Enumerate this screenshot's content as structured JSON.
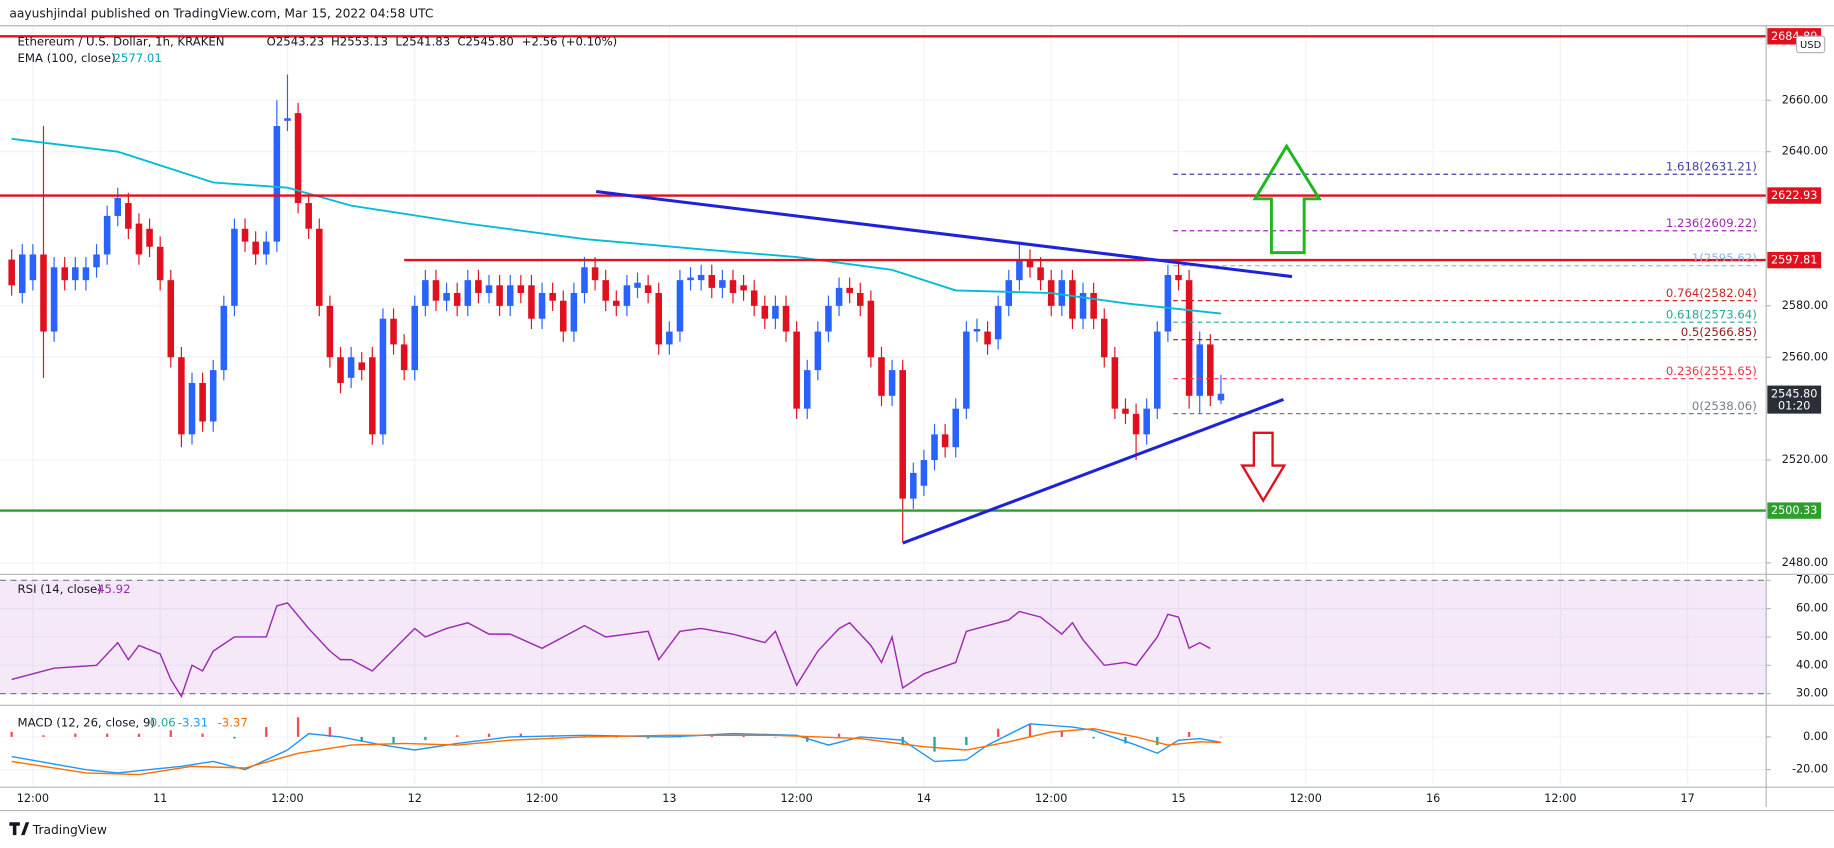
{
  "header": {
    "published": "aayushjindal published on TradingView.com, Mar 15, 2022 04:58 UTC",
    "currency": "USD"
  },
  "footer": {
    "brand": "TradingView"
  },
  "chart_data": [
    {
      "type": "candlestick",
      "legend": {
        "symbol": "Ethereum / U.S. Dollar, 1h, KRAKEN",
        "open": "O2543.23",
        "high": "H2553.13",
        "low": "L2541.83",
        "close": "C2545.80",
        "change": "+2.56 (+0.10%)"
      },
      "up_color": "#2962ff",
      "down_color": "#e0101e",
      "x": [
        -2,
        -1,
        0,
        1,
        2,
        3,
        4,
        5,
        6,
        7,
        8,
        9,
        10,
        11,
        12,
        13,
        14,
        15,
        16,
        17,
        18,
        19,
        20,
        21,
        22,
        23,
        24,
        25,
        26,
        27,
        28,
        29,
        30,
        31,
        32,
        33,
        34,
        35,
        36,
        37,
        38,
        39,
        40,
        41,
        42,
        43,
        44,
        45,
        46,
        47,
        48,
        49,
        50,
        51,
        52,
        53,
        54,
        55,
        56,
        57,
        58,
        59,
        60,
        61,
        62,
        63,
        64,
        65,
        66,
        67,
        68,
        69,
        70,
        71,
        72,
        73,
        74,
        75,
        76,
        77,
        78,
        79,
        80,
        81,
        82,
        83,
        84,
        85,
        86,
        87,
        88,
        89,
        90,
        91,
        92,
        93,
        94,
        95,
        96,
        97,
        98,
        99,
        100,
        101,
        102,
        103,
        104,
        105,
        106,
        107,
        108,
        109,
        110,
        111,
        112
      ],
      "open": [
        2598,
        2585,
        2590,
        2600,
        2570,
        2595,
        2590,
        2590,
        2595,
        2600,
        2615,
        2620,
        2612,
        2610,
        2603,
        2590,
        2560,
        2530,
        2550,
        2535,
        2555,
        2580,
        2610,
        2605,
        2600,
        2605,
        2652,
        2655,
        2620,
        2610,
        2580,
        2560,
        2552,
        2558,
        2560,
        2530,
        2575,
        2565,
        2555,
        2580,
        2590,
        2582,
        2585,
        2580,
        2590,
        2585,
        2588,
        2580,
        2588,
        2588,
        2575,
        2585,
        2582,
        2570,
        2585,
        2595,
        2590,
        2582,
        2580,
        2587,
        2588,
        2585,
        2565,
        2570,
        2590,
        2590,
        2592,
        2587,
        2590,
        2588,
        2586,
        2580,
        2575,
        2580,
        2570,
        2540,
        2555,
        2570,
        2580,
        2587,
        2585,
        2582,
        2560,
        2545,
        2555,
        2505,
        2510,
        2520,
        2530,
        2525,
        2540,
        2570,
        2570,
        2567,
        2580,
        2590,
        2598,
        2595,
        2590,
        2580,
        2590,
        2575,
        2585,
        2575,
        2560,
        2540,
        2538,
        2530,
        2540,
        2570,
        2592,
        2590,
        2545,
        2565,
        2543.23
      ],
      "high": [
        2602,
        2604,
        2604,
        2650,
        2599,
        2599,
        2599,
        2599,
        2604,
        2619,
        2626,
        2624,
        2616,
        2614,
        2607,
        2594,
        2564,
        2554,
        2554,
        2559,
        2584,
        2614,
        2614,
        2609,
        2609,
        2660,
        2670,
        2659,
        2624,
        2614,
        2584,
        2564,
        2564,
        2562,
        2564,
        2579,
        2579,
        2569,
        2584,
        2594,
        2594,
        2589,
        2589,
        2594,
        2594,
        2592,
        2592,
        2592,
        2592,
        2592,
        2589,
        2589,
        2586,
        2589,
        2599,
        2599,
        2594,
        2586,
        2592,
        2593,
        2592,
        2589,
        2574,
        2594,
        2595,
        2596,
        2596,
        2594,
        2594,
        2592,
        2590,
        2584,
        2584,
        2584,
        2574,
        2559,
        2574,
        2584,
        2591,
        2591,
        2589,
        2586,
        2564,
        2559,
        2559,
        2519,
        2524,
        2534,
        2534,
        2544,
        2574,
        2575,
        2574,
        2584,
        2594,
        2605,
        2602,
        2599,
        2594,
        2594,
        2594,
        2589,
        2589,
        2579,
        2564,
        2544,
        2542,
        2544,
        2574,
        2596,
        2598,
        2594,
        2570,
        2569,
        2553.13
      ],
      "low": [
        2584,
        2581,
        2586,
        2552,
        2566,
        2586,
        2586,
        2586,
        2591,
        2596,
        2611,
        2606,
        2596,
        2599,
        2586,
        2556,
        2525,
        2526,
        2531,
        2531,
        2551,
        2576,
        2601,
        2596,
        2596,
        2601,
        2648,
        2616,
        2606,
        2576,
        2556,
        2546,
        2548,
        2551,
        2526,
        2526,
        2561,
        2551,
        2551,
        2576,
        2578,
        2578,
        2576,
        2576,
        2581,
        2581,
        2576,
        2576,
        2581,
        2571,
        2571,
        2578,
        2566,
        2566,
        2581,
        2586,
        2578,
        2576,
        2576,
        2583,
        2581,
        2561,
        2561,
        2566,
        2586,
        2586,
        2583,
        2583,
        2581,
        2582,
        2576,
        2571,
        2571,
        2566,
        2536,
        2536,
        2551,
        2566,
        2576,
        2581,
        2576,
        2556,
        2541,
        2541,
        2488,
        2501,
        2506,
        2516,
        2521,
        2521,
        2536,
        2566,
        2561,
        2563,
        2576,
        2586,
        2591,
        2586,
        2576,
        2576,
        2571,
        2571,
        2571,
        2556,
        2536,
        2534,
        2520,
        2526,
        2536,
        2566,
        2586,
        2540,
        2538,
        2541,
        2541.83
      ],
      "close": [
        2588,
        2600,
        2600,
        2570,
        2595,
        2590,
        2595,
        2595,
        2600,
        2615,
        2622,
        2610,
        2600,
        2603,
        2590,
        2560,
        2530,
        2550,
        2535,
        2555,
        2580,
        2610,
        2605,
        2600,
        2605,
        2650,
        2653,
        2620,
        2610,
        2580,
        2560,
        2550,
        2560,
        2555,
        2530,
        2575,
        2565,
        2555,
        2580,
        2590,
        2582,
        2585,
        2580,
        2590,
        2585,
        2588,
        2580,
        2588,
        2585,
        2575,
        2585,
        2582,
        2570,
        2585,
        2595,
        2590,
        2582,
        2580,
        2588,
        2589,
        2585,
        2565,
        2570,
        2590,
        2591,
        2592,
        2587,
        2590,
        2585,
        2586,
        2580,
        2575,
        2580,
        2570,
        2540,
        2555,
        2570,
        2580,
        2587,
        2585,
        2580,
        2560,
        2545,
        2555,
        2505,
        2515,
        2520,
        2530,
        2525,
        2540,
        2570,
        2571,
        2565,
        2580,
        2590,
        2598,
        2595,
        2590,
        2580,
        2590,
        2575,
        2585,
        2575,
        2560,
        2540,
        2538,
        2530,
        2540,
        2570,
        2592,
        2590,
        2545,
        2565,
        2545,
        2545.8
      ],
      "ema": {
        "name": "EMA (100, close)",
        "last": "2577.01",
        "color": "#00bcd4",
        "x": [
          -2,
          8,
          17,
          24,
          30,
          41,
          52,
          63,
          72,
          81,
          87,
          96,
          103,
          112
        ],
        "values": [
          2645,
          2640,
          2628,
          2626,
          2619,
          2612,
          2606,
          2602,
          2599,
          2594,
          2586,
          2585,
          2581,
          2577.01
        ]
      },
      "xlim": [
        -3.1,
        163.4
      ],
      "xticks": [
        {
          "value": 0,
          "label": "12:00"
        },
        {
          "value": 12,
          "label": "11"
        },
        {
          "value": 24,
          "label": "12:00"
        },
        {
          "value": 36,
          "label": "12"
        },
        {
          "value": 48,
          "label": "12:00"
        },
        {
          "value": 60,
          "label": "13"
        },
        {
          "value": 72,
          "label": "12:00"
        },
        {
          "value": 84,
          "label": "14"
        },
        {
          "value": 96,
          "label": "12:00"
        },
        {
          "value": 108,
          "label": "15"
        },
        {
          "value": 120,
          "label": "12:00"
        },
        {
          "value": 132,
          "label": "16"
        },
        {
          "value": 144,
          "label": "12:00"
        },
        {
          "value": 156,
          "label": "17"
        }
      ],
      "ylim": [
        2476,
        2689
      ],
      "yticks": [
        {
          "value": 2480,
          "label": "2480.00"
        },
        {
          "value": 2520,
          "label": "2520.00"
        },
        {
          "value": 2560,
          "label": "2560.00"
        },
        {
          "value": 2580,
          "label": "2580.00"
        },
        {
          "value": 2640,
          "label": "2640.00"
        },
        {
          "value": 2660,
          "label": "2660.00"
        }
      ],
      "grid": true,
      "levels": [
        {
          "value": 2684.89,
          "color": "#e0101e",
          "from_x": -3.1
        },
        {
          "value": 2622.93,
          "color": "#e0101e",
          "from_x": -3.1
        },
        {
          "value": 2597.81,
          "color": "#e0101e",
          "from_x": 35
        },
        {
          "value": 2500.33,
          "color": "#2e9e2e",
          "from_x": -3.1
        }
      ],
      "current": {
        "value": 2545.8,
        "label": "2545.80",
        "timer": "01:20",
        "color": "#2a2e39"
      },
      "fib": [
        {
          "label": "1.618(2631.21)",
          "value": 2631.21,
          "color": "#3f3fa8"
        },
        {
          "label": "1.236(2609.22)",
          "value": 2609.22,
          "color": "#9c27b0"
        },
        {
          "label": "1(2595.62)",
          "value": 2595.62,
          "color": "#90b4dc"
        },
        {
          "label": "0.764(2582.04)",
          "value": 2582.04,
          "color": "#c62828"
        },
        {
          "label": "0.618(2573.64)",
          "value": 2573.64,
          "color": "#26a69a"
        },
        {
          "label": "0.5(2566.85)",
          "value": 2566.85,
          "color": "#8b1a1a"
        },
        {
          "label": "0.236(2551.65)",
          "value": 2551.65,
          "color": "#f23645"
        },
        {
          "label": "0(2538.06)",
          "value": 2538.06,
          "color": "#787b86"
        }
      ],
      "fib_from_x": 107.5,
      "trendlines": [
        {
          "x": [
            53.1,
            118.7
          ],
          "y": [
            2624.5,
            2591.4
          ],
          "color": "#1e22d8"
        },
        {
          "x": [
            82,
            117.9
          ],
          "y": [
            2487.7,
            2543.6
          ],
          "color": "#1e22d8"
        }
      ]
    },
    {
      "type": "line",
      "name": "RSI (14, close)",
      "last": "45.92",
      "color": "#9c27b0",
      "x": [
        -2,
        2,
        6,
        8,
        9,
        10,
        12,
        13,
        14,
        15,
        16,
        17,
        19,
        22,
        23,
        24,
        26,
        28,
        29,
        30,
        32,
        36,
        37,
        39,
        41,
        43,
        45,
        48,
        52,
        54,
        58,
        59,
        61,
        63,
        66,
        69,
        70,
        72,
        74,
        76,
        77,
        79,
        80,
        81,
        82,
        84,
        87,
        88,
        92,
        93,
        95,
        97,
        98,
        99,
        101,
        103,
        104,
        106,
        107,
        108,
        109,
        110,
        111
      ],
      "values": [
        35,
        39,
        40,
        48,
        42,
        47,
        44,
        35,
        29,
        40,
        38,
        45,
        50,
        50,
        61,
        62,
        53,
        45,
        42,
        42,
        38,
        53,
        50,
        53,
        55,
        51,
        51,
        46,
        54,
        50,
        52,
        42,
        52,
        53,
        51,
        48,
        52,
        33,
        45,
        53,
        55,
        47,
        41,
        50,
        32,
        37,
        41,
        52,
        56,
        59,
        57,
        51,
        55,
        49,
        40,
        41,
        40,
        50,
        58,
        57,
        46,
        48,
        45.92
      ],
      "ylim": [
        26.3,
        71.7
      ],
      "yticks": [
        {
          "value": 30,
          "label": "30.00"
        },
        {
          "value": 40,
          "label": "40.00"
        },
        {
          "value": 50,
          "label": "50.00"
        },
        {
          "value": 60,
          "label": "60.00"
        },
        {
          "value": 70,
          "label": "70.00"
        }
      ],
      "band": {
        "range": [
          30,
          70
        ],
        "color": "#9c27b0"
      }
    },
    {
      "type": "macd",
      "name": "MACD (12, 26, close, 9)",
      "series": [
        {
          "name": "MACD",
          "last": "-3.31",
          "color": "#2196f3",
          "x": [
            -2,
            5,
            8,
            14,
            17,
            20,
            22,
            24,
            26,
            29,
            33,
            36,
            40,
            45,
            52,
            60,
            66,
            72,
            75,
            78,
            82,
            85,
            88,
            90,
            94,
            98,
            100,
            104,
            106,
            108,
            110,
            112
          ],
          "values": [
            -12,
            -20,
            -22,
            -18,
            -15,
            -20,
            -14,
            -8,
            2,
            0,
            -5,
            -8,
            -4,
            0,
            1,
            0,
            2,
            1,
            -5,
            0,
            -2,
            -15,
            -14,
            -5,
            8,
            6,
            4,
            -5,
            -10,
            -2,
            -1,
            -3.31
          ]
        },
        {
          "name": "Signal",
          "last": "-3.37",
          "color": "#ff6d00",
          "x": [
            -2,
            5,
            10,
            15,
            20,
            25,
            30,
            35,
            40,
            45,
            52,
            60,
            70,
            78,
            84,
            88,
            92,
            96,
            100,
            104,
            107,
            110,
            112
          ],
          "values": [
            -15,
            -22,
            -23,
            -18,
            -19,
            -10,
            -5,
            -4,
            -5,
            -2,
            0,
            1,
            1,
            -1,
            -6,
            -8,
            -3,
            3,
            5,
            0,
            -5,
            -3,
            -3.37
          ]
        }
      ],
      "histogram": {
        "last": "0.06",
        "positive_color": "#ef5350",
        "negative_color": "#26a69a",
        "x": [
          -2,
          1,
          4,
          7,
          10,
          13,
          16,
          19,
          22,
          25,
          28,
          31,
          34,
          37,
          40,
          43,
          46,
          49,
          52,
          55,
          58,
          61,
          64,
          67,
          70,
          73,
          76,
          79,
          82,
          85,
          88,
          91,
          94,
          97,
          100,
          103,
          106,
          109,
          112
        ],
        "values": [
          3,
          1,
          2,
          2,
          2,
          4,
          2,
          -1,
          6,
          12,
          6,
          -3,
          -4,
          -2,
          1,
          2,
          2,
          1,
          1,
          0,
          -1,
          0,
          1,
          1,
          0,
          -3,
          2,
          0,
          -5,
          -9,
          -5,
          5,
          8,
          4,
          -1,
          -4,
          -5,
          3,
          0.06
        ]
      },
      "ylim": [
        -30,
        18.6
      ],
      "yticks": [
        {
          "value": -20,
          "label": "-20.00"
        },
        {
          "value": 0,
          "label": "0.00"
        }
      ]
    }
  ]
}
